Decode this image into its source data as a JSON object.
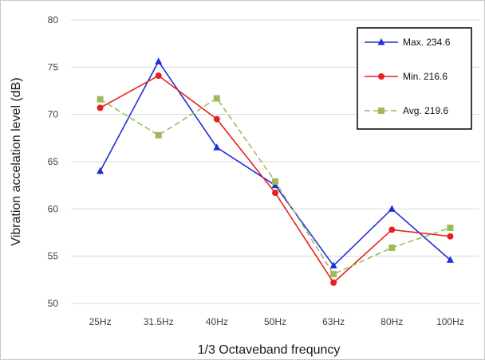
{
  "chart_data": {
    "type": "line",
    "title": "",
    "xlabel": "1/3 Octaveband frequncy",
    "ylabel": "Vibration accelation level (dB)",
    "categories": [
      "25Hz",
      "31.5Hz",
      "40Hz",
      "50Hz",
      "63Hz",
      "80Hz",
      "100Hz"
    ],
    "ylim": [
      50,
      80
    ],
    "yticks": [
      "50",
      "55",
      "60",
      "65",
      "70",
      "75",
      "80"
    ],
    "grid": "horizontal",
    "legend_position": "top-right",
    "series": [
      {
        "name": "Max. 234.6",
        "values": [
          64.0,
          75.6,
          66.5,
          62.5,
          54.0,
          60.0,
          54.6
        ],
        "color": "#1f2fd6",
        "marker": "triangle",
        "dash": "solid"
      },
      {
        "name": "Min. 216.6",
        "values": [
          70.7,
          74.1,
          69.5,
          61.7,
          52.2,
          57.8,
          57.1
        ],
        "color": "#e8201c",
        "marker": "circle",
        "dash": "solid"
      },
      {
        "name": "Avg. 219.6",
        "values": [
          71.6,
          67.8,
          71.7,
          62.9,
          53.1,
          55.9,
          58.0
        ],
        "color": "#9dbb5b",
        "marker": "square",
        "dash": "dashed"
      }
    ]
  }
}
